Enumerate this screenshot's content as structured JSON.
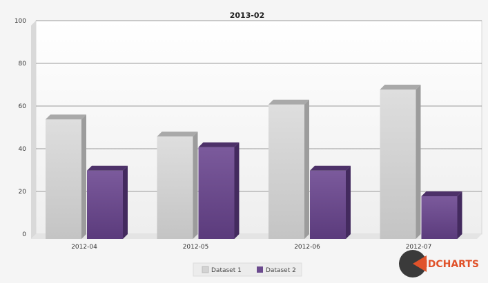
{
  "chart_data": {
    "type": "bar",
    "title": "2013-02",
    "categories": [
      "2012-04",
      "2012-05",
      "2012-06",
      "2012-07"
    ],
    "series": [
      {
        "name": "Dataset 1",
        "values": [
          56,
          48,
          63,
          70
        ]
      },
      {
        "name": "Dataset 2",
        "values": [
          32,
          43,
          32,
          20
        ]
      }
    ],
    "ylim": [
      0,
      100
    ],
    "yticks": [
      "0",
      "20",
      "40",
      "60",
      "80",
      "100"
    ],
    "grid": true,
    "legend_position": "bottom",
    "colors": {
      "Dataset 1": "#d3d3d3",
      "Dataset 2": "#6b4a8e"
    }
  },
  "brand": {
    "text": "HDCHARTS"
  }
}
